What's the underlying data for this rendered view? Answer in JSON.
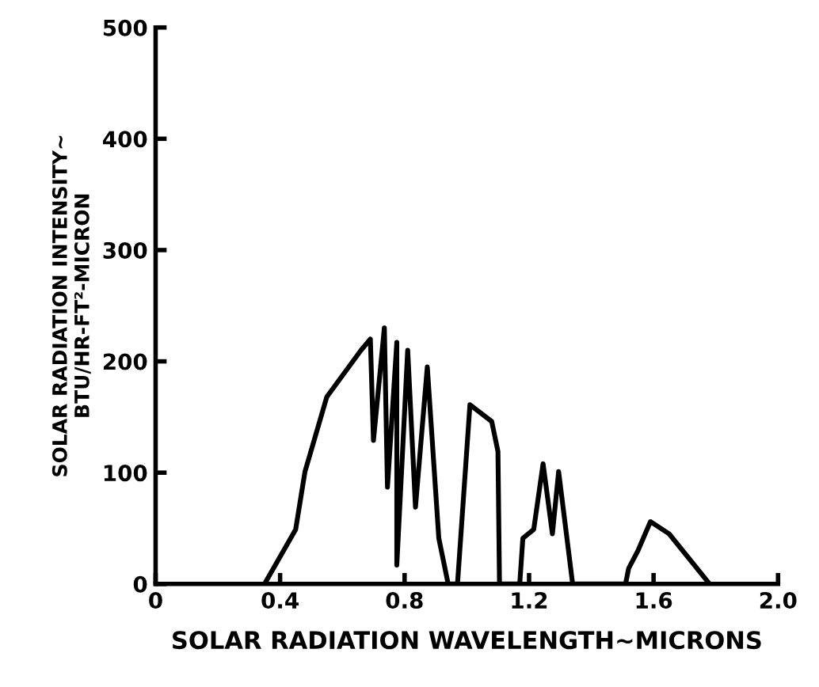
{
  "chart_data": {
    "type": "line",
    "xlabel": "SOLAR RADIATION WAVELENGTH~MICRONS",
    "ylabel": "SOLAR RADIATION INTENSITY~\nBTU/HR-FT²-MICRON",
    "xlim": [
      0,
      2.0
    ],
    "ylim": [
      0,
      500
    ],
    "xticks": [
      0,
      0.4,
      0.8,
      1.2,
      1.6,
      {
        "value": 2.0,
        "label": "2.0"
      }
    ],
    "yticks": [
      0,
      100,
      200,
      300,
      400,
      500
    ],
    "grid": false,
    "marker": "none",
    "line_style": "solid",
    "series": [
      {
        "color": "#000000",
        "x": [
          0.35,
          0.45,
          0.48,
          0.55,
          0.66,
          0.69,
          0.7,
          0.735,
          0.745,
          0.775,
          0.775,
          0.81,
          0.835,
          0.873,
          0.91,
          0.94,
          0.97,
          1.01,
          1.08,
          1.1,
          1.105,
          1.17,
          1.18,
          1.215,
          1.245,
          1.275,
          1.295,
          1.34,
          1.51,
          1.52,
          1.55,
          1.59,
          1.65,
          1.78
        ],
        "values": [
          0,
          49,
          101,
          168,
          210,
          220,
          129,
          230,
          87,
          217,
          17,
          210,
          69,
          195,
          41,
          0,
          0,
          161,
          146,
          119,
          0,
          0,
          41,
          49,
          108,
          45,
          101,
          0,
          0,
          14,
          30,
          56,
          45,
          0
        ]
      }
    ]
  }
}
